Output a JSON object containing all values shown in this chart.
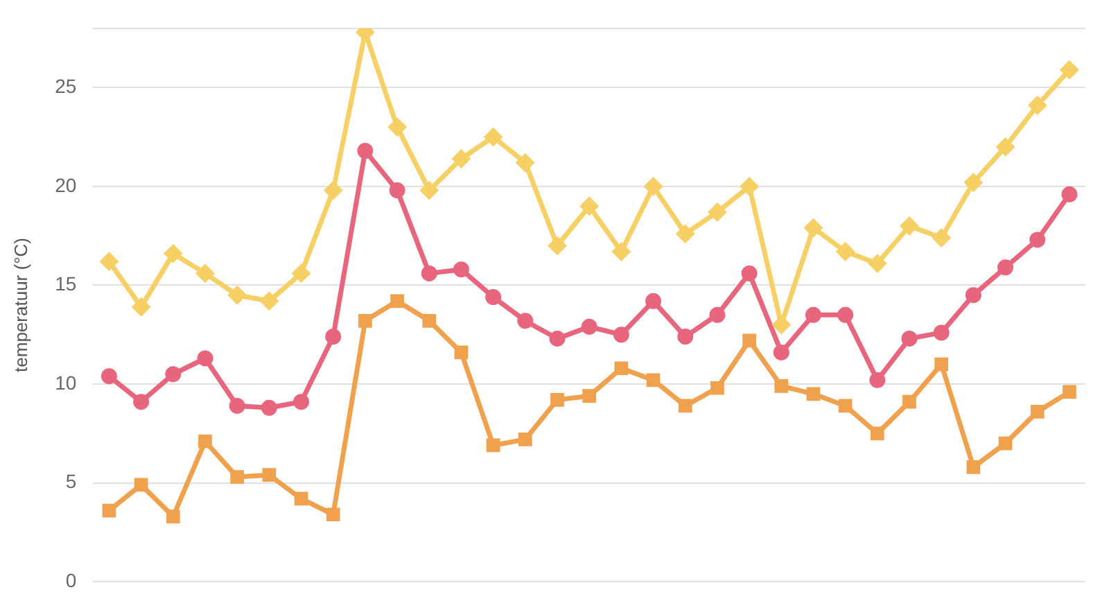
{
  "chart_data": {
    "type": "line",
    "ylabel": "temperatuur (°C)",
    "categories": [
      null,
      null,
      null,
      null,
      null,
      null,
      null,
      null,
      null,
      null,
      null,
      null,
      null,
      null,
      null,
      null,
      null,
      null,
      null,
      null,
      null,
      null,
      null,
      null,
      null,
      null,
      null,
      null,
      null,
      null,
      null
    ],
    "series": [
      {
        "color": "#f6cf65",
        "marker": "diamond",
        "values": [
          16.2,
          13.9,
          16.6,
          15.6,
          14.5,
          14.2,
          15.6,
          19.8,
          27.8,
          23.0,
          19.8,
          21.4,
          22.5,
          21.2,
          17.0,
          19.0,
          16.7,
          20.0,
          17.6,
          18.7,
          20.0,
          13.0,
          17.9,
          16.7,
          16.1,
          18.0,
          17.4,
          20.2,
          22.0,
          24.1,
          25.9
        ]
      },
      {
        "color": "#e8657e",
        "marker": "circle",
        "values": [
          10.4,
          9.1,
          10.5,
          11.3,
          8.9,
          8.8,
          9.1,
          12.4,
          21.8,
          19.8,
          15.6,
          15.8,
          14.4,
          13.2,
          12.3,
          12.9,
          12.5,
          14.2,
          12.4,
          13.5,
          15.6,
          11.6,
          13.5,
          13.5,
          10.2,
          12.3,
          12.6,
          14.5,
          15.9,
          17.3,
          19.6
        ]
      },
      {
        "color": "#f0a14e",
        "marker": "square",
        "values": [
          3.6,
          4.9,
          3.3,
          7.1,
          5.3,
          5.4,
          4.2,
          3.4,
          13.2,
          14.2,
          13.2,
          11.6,
          6.9,
          7.2,
          9.2,
          9.4,
          10.8,
          10.2,
          8.9,
          9.8,
          12.2,
          9.9,
          9.5,
          8.9,
          7.5,
          9.1,
          11.0,
          5.8,
          7.0,
          8.6,
          9.6
        ]
      }
    ],
    "ylim": [
      0,
      28
    ],
    "yticks": [
      0,
      5,
      10,
      15,
      20,
      25,
      {
        "value": 28,
        "label": null
      }
    ],
    "grid": "y",
    "legend": false,
    "tick_labels": "y"
  }
}
